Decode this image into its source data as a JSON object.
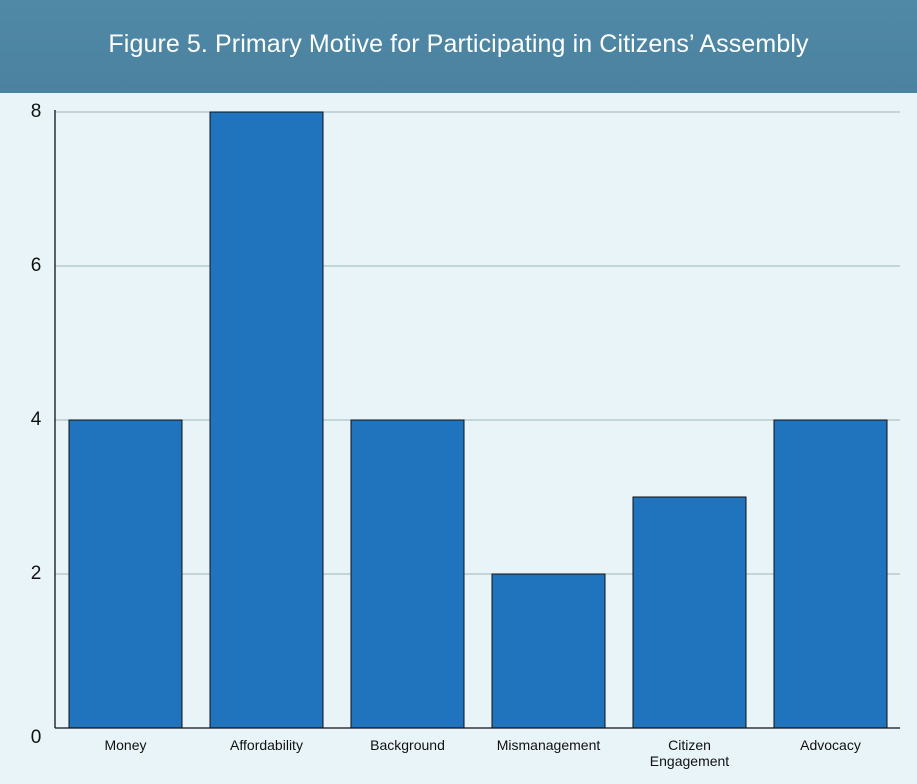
{
  "header": {
    "title": "Figure 5. Primary Motive for Participating in Citizens’ Assembly"
  },
  "colors": {
    "header_bg": "#4f87a5",
    "plot_bg": "#e8f4f8",
    "bar_fill": "#1f74bd",
    "bar_stroke": "#111111",
    "grid": "#9fb6b8",
    "axis": "#111111",
    "text": "#111111"
  },
  "chart_data": {
    "type": "bar",
    "title": "Figure 5. Primary Motive for Participating in Citizens’ Assembly",
    "categories": [
      "Money",
      "Affordability",
      "Background",
      "Mismanagement",
      "Citizen Engagement",
      "Advocacy"
    ],
    "category_lines": [
      [
        "Money"
      ],
      [
        "Affordability"
      ],
      [
        "Background"
      ],
      [
        "Mismanagement"
      ],
      [
        "Citizen",
        "Engagement"
      ],
      [
        "Advocacy"
      ]
    ],
    "values": [
      4,
      8,
      4,
      2,
      3,
      4
    ],
    "yticks": [
      0,
      2,
      4,
      6,
      8
    ],
    "ylim": [
      0,
      8
    ],
    "xlabel": "",
    "ylabel": "",
    "grid": true,
    "legend": "none"
  }
}
